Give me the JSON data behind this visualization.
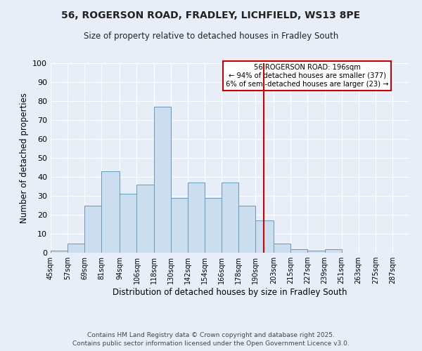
{
  "title_line1": "56, ROGERSON ROAD, FRADLEY, LICHFIELD, WS13 8PE",
  "title_line2": "Size of property relative to detached houses in Fradley South",
  "xlabel": "Distribution of detached houses by size in Fradley South",
  "ylabel": "Number of detached properties",
  "bin_edges": [
    45,
    57,
    69,
    81,
    94,
    106,
    118,
    130,
    142,
    154,
    166,
    178,
    190,
    203,
    215,
    227,
    239,
    251,
    263,
    275,
    287
  ],
  "bar_heights": [
    1,
    5,
    25,
    43,
    31,
    36,
    77,
    29,
    37,
    29,
    37,
    25,
    17,
    5,
    2,
    1,
    2,
    0,
    0,
    0
  ],
  "bar_color": "#ccddef",
  "bar_edgecolor": "#6699bb",
  "bar_linewidth": 0.7,
  "vline_x": 196,
  "vline_color": "#cc0000",
  "annotation_title": "56 ROGERSON ROAD: 196sqm",
  "annotation_line2": "← 94% of detached houses are smaller (377)",
  "annotation_line3": "6% of semi-detached houses are larger (23) →",
  "annotation_box_edgecolor": "#cc0000",
  "annotation_box_facecolor": "#ffffff",
  "ytick_values": [
    0,
    10,
    20,
    30,
    40,
    50,
    60,
    70,
    80,
    90,
    100
  ],
  "ylim": [
    0,
    100
  ],
  "bg_color": "#e8eef8",
  "grid_color": "#ffffff",
  "footer_line1": "Contains HM Land Registry data © Crown copyright and database right 2025.",
  "footer_line2": "Contains public sector information licensed under the Open Government Licence v3.0."
}
